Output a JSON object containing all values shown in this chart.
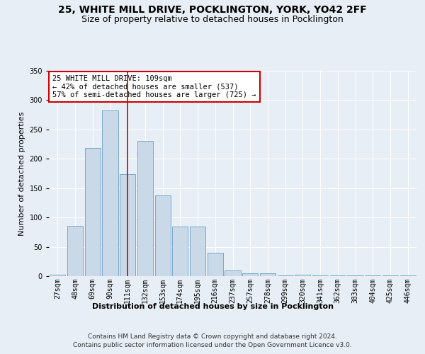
{
  "title_line1": "25, WHITE MILL DRIVE, POCKLINGTON, YORK, YO42 2FF",
  "title_line2": "Size of property relative to detached houses in Pocklington",
  "xlabel": "Distribution of detached houses by size in Pocklington",
  "ylabel": "Number of detached properties",
  "bar_color": "#c9d9e8",
  "bar_edge_color": "#7aaac8",
  "vline_color": "#cc0000",
  "vline_x": 4,
  "categories": [
    "27sqm",
    "48sqm",
    "69sqm",
    "90sqm",
    "111sqm",
    "132sqm",
    "153sqm",
    "174sqm",
    "195sqm",
    "216sqm",
    "237sqm",
    "257sqm",
    "278sqm",
    "299sqm",
    "320sqm",
    "341sqm",
    "362sqm",
    "383sqm",
    "404sqm",
    "425sqm",
    "446sqm"
  ],
  "values": [
    2,
    86,
    219,
    283,
    174,
    231,
    138,
    84,
    84,
    40,
    10,
    5,
    5,
    1,
    3,
    1,
    1,
    1,
    1,
    1,
    1
  ],
  "ylim": [
    0,
    350
  ],
  "yticks": [
    0,
    50,
    100,
    150,
    200,
    250,
    300,
    350
  ],
  "annotation_text": "25 WHITE MILL DRIVE: 109sqm\n← 42% of detached houses are smaller (537)\n57% of semi-detached houses are larger (725) →",
  "footer_line1": "Contains HM Land Registry data © Crown copyright and database right 2024.",
  "footer_line2": "Contains public sector information licensed under the Open Government Licence v3.0.",
  "background_color": "#e8eef5",
  "plot_bg_color": "#e8eef5",
  "grid_color": "#ffffff",
  "title_fontsize": 10,
  "subtitle_fontsize": 9,
  "ylabel_fontsize": 8,
  "xlabel_fontsize": 8,
  "tick_fontsize": 7,
  "annotation_fontsize": 7.5,
  "footer_fontsize": 6.5
}
